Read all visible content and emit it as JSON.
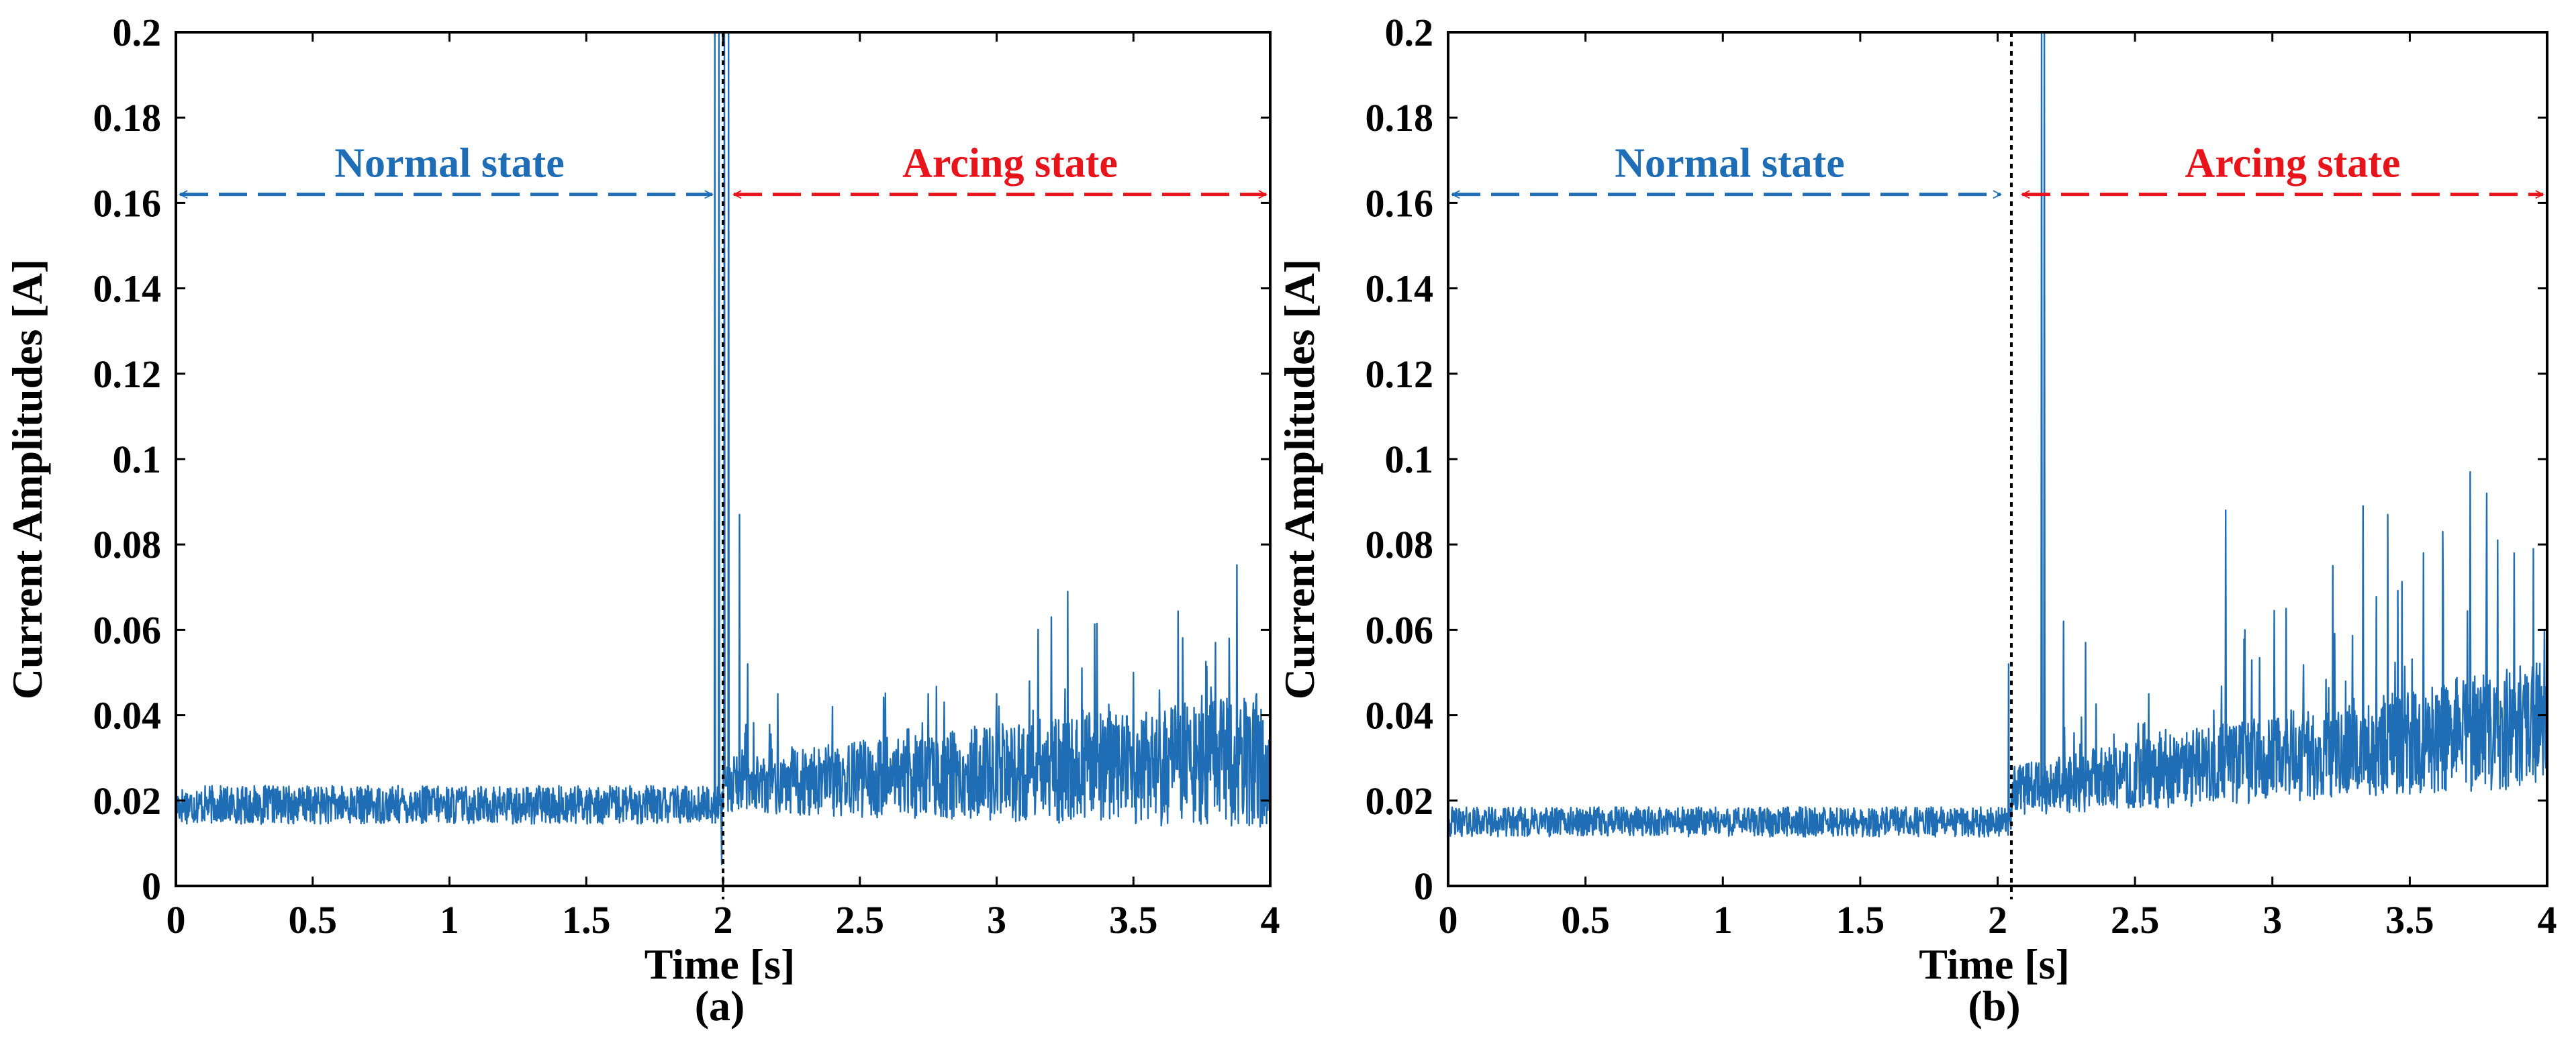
{
  "colors": {
    "signal": "#1f6eb5",
    "normal": "#1f6eb5",
    "arcing": "#e8141b",
    "boundary": "#000000",
    "axis": "#000000"
  },
  "chart_data": [
    {
      "type": "line",
      "panel_label": "(a)",
      "xlabel": "Time [s]",
      "ylabel": "Current Amplitudes [A]",
      "xlim": [
        0,
        4
      ],
      "ylim": [
        0,
        0.2
      ],
      "x_ticks": [
        0,
        0.5,
        1,
        1.5,
        2,
        2.5,
        3,
        3.5,
        4
      ],
      "x_tick_labels": [
        "0",
        "0.5",
        "1",
        "1.5",
        "2",
        "2.5",
        "3",
        "3.5",
        "4"
      ],
      "y_ticks": [
        0,
        0.02,
        0.04,
        0.06,
        0.08,
        0.1,
        0.12,
        0.14,
        0.16,
        0.18,
        0.2
      ],
      "y_tick_labels": [
        "0",
        "0.02",
        "0.04",
        "0.06",
        "0.08",
        "0.1",
        "0.12",
        "0.14",
        "0.16",
        "0.18",
        "0.2"
      ],
      "transition_time": 2.0,
      "arrow_level": 0.162,
      "normal_state_label": "Normal state",
      "arcing_state_label": "Arcing state",
      "noise_seed": 17,
      "normal_baseline": 0.019,
      "normal_noise": 0.0045,
      "arcing_baseline": 0.021,
      "arcing_noise": 0.0065,
      "arcing_growth": 0.002,
      "spikes": [
        {
          "t": 1.97,
          "v": 0.2
        },
        {
          "t": 1.985,
          "v": 0.2
        },
        {
          "t": 1.995,
          "v": 0.005
        },
        {
          "t": 2.005,
          "v": 0.2
        },
        {
          "t": 2.02,
          "v": 0.2
        },
        {
          "t": 2.06,
          "v": 0.087
        },
        {
          "t": 2.09,
          "v": 0.052
        },
        {
          "t": 2.2,
          "v": 0.045
        },
        {
          "t": 2.4,
          "v": 0.042
        },
        {
          "t": 2.75,
          "v": 0.045
        },
        {
          "t": 3.0,
          "v": 0.045
        },
        {
          "t": 3.12,
          "v": 0.048
        },
        {
          "t": 3.2,
          "v": 0.063
        },
        {
          "t": 3.26,
          "v": 0.069
        },
        {
          "t": 3.5,
          "v": 0.05
        },
        {
          "t": 3.8,
          "v": 0.057
        },
        {
          "t": 3.85,
          "v": 0.058
        },
        {
          "t": 3.95,
          "v": 0.045
        }
      ]
    },
    {
      "type": "line",
      "panel_label": "(b)",
      "xlabel": "Time [s]",
      "ylabel": "Current Amplitudes [A]",
      "xlim": [
        0,
        4
      ],
      "ylim": [
        0,
        0.2
      ],
      "x_ticks": [
        0,
        0.5,
        1,
        1.5,
        2,
        2.5,
        3,
        3.5,
        4
      ],
      "x_tick_labels": [
        "0",
        "0.5",
        "1",
        "1.5",
        "2",
        "2.5",
        "3",
        "3.5",
        "4"
      ],
      "y_ticks": [
        0,
        0.02,
        0.04,
        0.06,
        0.08,
        0.1,
        0.12,
        0.14,
        0.16,
        0.18,
        0.2
      ],
      "y_tick_labels": [
        "0",
        "0.02",
        "0.04",
        "0.06",
        "0.08",
        "0.1",
        "0.12",
        "0.14",
        "0.16",
        "0.18",
        "0.2"
      ],
      "transition_time": 2.05,
      "arrow_level": 0.162,
      "normal_state_label": "Normal state",
      "arcing_state_label": "Arcing state",
      "noise_seed": 42,
      "normal_baseline": 0.015,
      "normal_noise": 0.0035,
      "arcing_baseline": 0.02,
      "arcing_noise": 0.006,
      "arcing_growth": 0.012,
      "spikes": [
        {
          "t": 2.04,
          "v": 0.052
        },
        {
          "t": 2.16,
          "v": 0.2
        },
        {
          "t": 2.17,
          "v": 0.2
        },
        {
          "t": 2.24,
          "v": 0.062
        },
        {
          "t": 2.32,
          "v": 0.057
        },
        {
          "t": 2.55,
          "v": 0.045
        },
        {
          "t": 2.83,
          "v": 0.088
        },
        {
          "t": 2.9,
          "v": 0.06
        },
        {
          "t": 3.05,
          "v": 0.065
        },
        {
          "t": 3.22,
          "v": 0.075
        },
        {
          "t": 3.33,
          "v": 0.089
        },
        {
          "t": 3.42,
          "v": 0.087
        },
        {
          "t": 3.55,
          "v": 0.078
        },
        {
          "t": 3.62,
          "v": 0.083
        },
        {
          "t": 3.72,
          "v": 0.097
        },
        {
          "t": 3.78,
          "v": 0.092
        },
        {
          "t": 3.82,
          "v": 0.081
        },
        {
          "t": 3.88,
          "v": 0.078
        },
        {
          "t": 3.95,
          "v": 0.079
        }
      ]
    }
  ]
}
